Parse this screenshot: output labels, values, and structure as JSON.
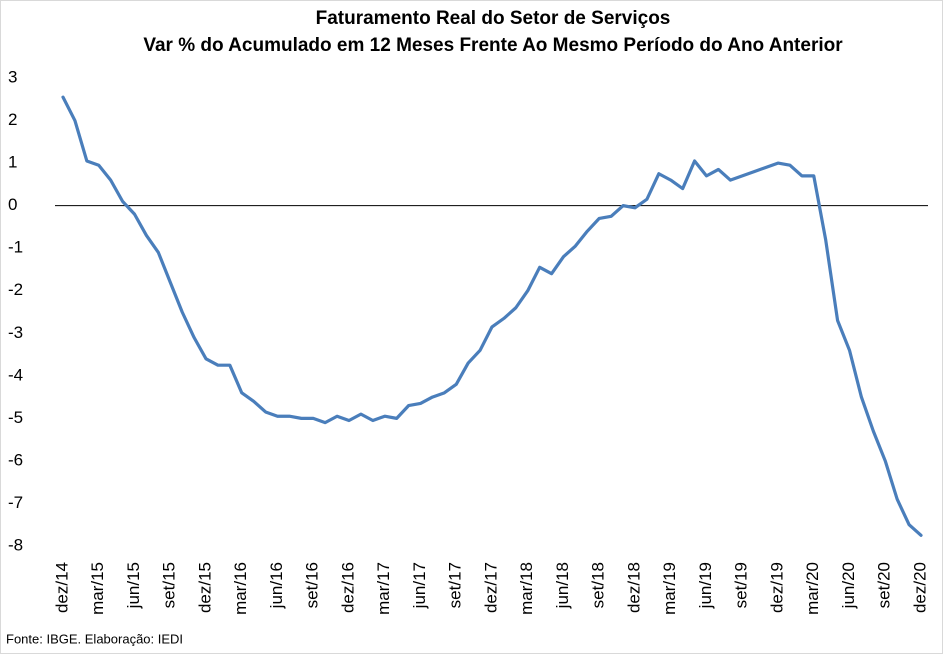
{
  "chart_data": {
    "type": "line",
    "title": "Faturamento Real do Setor de Serviços",
    "subtitle": "Var % do Acumulado em 12 Meses Frente Ao Mesmo Período do Ano Anterior",
    "source": "Fonte: IBGE. Elaboração: IEDI",
    "categories": [
      "dez/14",
      null,
      null,
      "mar/15",
      null,
      null,
      "jun/15",
      null,
      null,
      "set/15",
      null,
      null,
      "dez/15",
      null,
      null,
      "mar/16",
      null,
      null,
      "jun/16",
      null,
      null,
      "set/16",
      null,
      null,
      "dez/16",
      null,
      null,
      "mar/17",
      null,
      null,
      "jun/17",
      null,
      null,
      "set/17",
      null,
      null,
      "dez/17",
      null,
      null,
      "mar/18",
      null,
      null,
      "jun/18",
      null,
      null,
      "set/18",
      null,
      null,
      "dez/18",
      null,
      null,
      "mar/19",
      null,
      null,
      "jun/19",
      null,
      null,
      "set/19",
      null,
      null,
      "dez/19",
      null,
      null,
      "mar/20",
      null,
      null,
      "jun/20",
      null,
      null,
      "set/20",
      null,
      null,
      "dez/20"
    ],
    "values": [
      2.55,
      2.0,
      1.05,
      0.95,
      0.6,
      0.1,
      -0.2,
      -0.7,
      -1.1,
      -1.8,
      -2.5,
      -3.1,
      -3.6,
      -3.75,
      -3.75,
      -4.4,
      -4.6,
      -4.85,
      -4.95,
      -4.95,
      -5.0,
      -5.0,
      -5.1,
      -4.95,
      -5.05,
      -4.9,
      -5.05,
      -4.95,
      -5.0,
      -4.7,
      -4.65,
      -4.5,
      -4.4,
      -4.2,
      -3.7,
      -3.4,
      -2.85,
      -2.65,
      -2.4,
      -2.0,
      -1.45,
      -1.6,
      -1.2,
      -0.95,
      -0.6,
      -0.3,
      -0.25,
      0.0,
      -0.05,
      0.15,
      0.75,
      0.6,
      0.4,
      1.05,
      0.7,
      0.85,
      0.6,
      0.7,
      0.8,
      0.9,
      1.0,
      0.95,
      0.7,
      0.7,
      -0.8,
      -2.7,
      -3.4,
      -4.5,
      -5.3,
      -6.0,
      -6.9,
      -7.5,
      -7.75
    ],
    "color": "#4a7ebb",
    "ylim": [
      -8,
      3
    ],
    "yticks": [
      -8,
      -7,
      -6,
      -5,
      -4,
      -3,
      -2,
      -1,
      0,
      1,
      2,
      3
    ]
  }
}
